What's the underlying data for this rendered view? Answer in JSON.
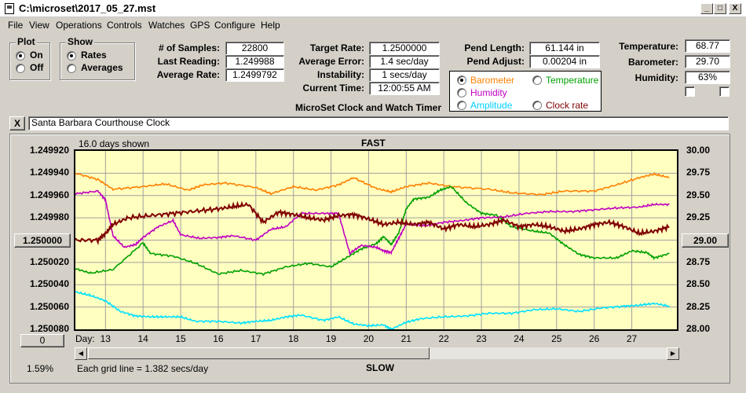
{
  "window": {
    "title": "C:\\microset\\2017_05_27.mst",
    "min_symbol": "_",
    "max_symbol": "□",
    "close_symbol": "X"
  },
  "menu": [
    "File",
    "View",
    "Operations",
    "Controls",
    "Watches",
    "GPS",
    "Configure",
    "Help"
  ],
  "plot_group": {
    "label": "Plot",
    "options": [
      "On",
      "Off"
    ],
    "selected": 0
  },
  "show_group": {
    "label": "Show",
    "options": [
      "Rates",
      "Averages"
    ],
    "selected": 0
  },
  "stats": {
    "samples_label": "# of Samples:",
    "samples": "22800",
    "last_reading_label": "Last Reading:",
    "last_reading": "1.249988",
    "average_rate_label": "Average Rate:",
    "average_rate": "1.2499792",
    "target_rate_label": "Target Rate:",
    "target_rate": "1.2500000",
    "average_error_label": "Average Error:",
    "average_error": "1.4 sec/day",
    "instability_label": "Instability:",
    "instability": "1 secs/day",
    "current_time_label": "Current Time:",
    "current_time": "12:00:55 AM",
    "app_caption": "MicroSet Clock and Watch Timer",
    "pend_length_label": "Pend Length:",
    "pend_length": "61.144 in",
    "pend_adjust_label": "Pend Adjust:",
    "pend_adjust": "0.00204 in",
    "temperature_label": "Temperature:",
    "temperature": "68.77",
    "barometer_label": "Barometer:",
    "barometer": "29.70",
    "humidity_label": "Humidity:",
    "humidity": "63%"
  },
  "sensors": [
    {
      "label": "Barometer",
      "color": "#ff8000",
      "selected": true
    },
    {
      "label": "Temperature",
      "color": "#00a000",
      "selected": false
    },
    {
      "label": "Humidity",
      "color": "#c000c0",
      "selected": false
    },
    {
      "label": "Amplitude",
      "color": "#00d0ff",
      "selected": false
    },
    {
      "label": "Clock rate",
      "color": "#800000",
      "selected": false
    }
  ],
  "clock_name": {
    "close_label": "X",
    "value": "Santa Barbara Courthouse Clock"
  },
  "chart": {
    "days_shown": "16.0 days shown",
    "top_label": "FAST",
    "bottom_label": "SLOW",
    "grid_note": "Each grid line = 1.382 secs/day",
    "day_label": "Day:",
    "percent": "1.59%",
    "center_left_button": "1.250000",
    "center_right_button": "29.00",
    "zero_button": "0"
  },
  "chart_data": {
    "type": "line",
    "x_label": "Day:",
    "x_ticks": [
      "13",
      "14",
      "15",
      "16",
      "17",
      "18",
      "19",
      "20",
      "21",
      "22",
      "23",
      "24",
      "25",
      "26",
      "27"
    ],
    "x_range": [
      12.2,
      28.2
    ],
    "left_axis": {
      "ticks": [
        "1.249920",
        "1.249940",
        "1.249960",
        "1.249980",
        "1.250000",
        "1.250020",
        "1.250040",
        "1.250060",
        "1.250080"
      ],
      "range_top": 1.24992,
      "range_bottom": 1.25008
    },
    "right_axis": {
      "ticks": [
        "30.00",
        "29.75",
        "29.50",
        "29.25",
        "29.00",
        "28.75",
        "28.50",
        "28.25",
        "28.00"
      ],
      "range_top": 30.0,
      "range_bottom": 28.0
    },
    "series": [
      {
        "color": "#ff8000",
        "axis": "right",
        "points": [
          [
            12.2,
            29.75
          ],
          [
            12.8,
            29.68
          ],
          [
            13.2,
            29.57
          ],
          [
            14.0,
            29.6
          ],
          [
            14.6,
            29.63
          ],
          [
            15.2,
            29.56
          ],
          [
            15.6,
            29.62
          ],
          [
            16.2,
            29.64
          ],
          [
            17.0,
            29.59
          ],
          [
            17.4,
            29.52
          ],
          [
            18.0,
            29.6
          ],
          [
            18.6,
            29.56
          ],
          [
            19.2,
            29.62
          ],
          [
            19.6,
            29.7
          ],
          [
            20.2,
            29.58
          ],
          [
            20.6,
            29.54
          ],
          [
            21.0,
            29.6
          ],
          [
            21.6,
            29.64
          ],
          [
            22.2,
            29.6
          ],
          [
            23.2,
            29.57
          ],
          [
            23.8,
            29.53
          ],
          [
            24.6,
            29.51
          ],
          [
            25.2,
            29.55
          ],
          [
            26.0,
            29.55
          ],
          [
            26.6,
            29.62
          ],
          [
            27.2,
            29.7
          ],
          [
            27.6,
            29.74
          ],
          [
            28.0,
            29.7
          ]
        ]
      },
      {
        "color": "#00a000",
        "axis": "right",
        "points": [
          [
            12.2,
            28.68
          ],
          [
            12.6,
            28.63
          ],
          [
            13.2,
            28.67
          ],
          [
            14.0,
            28.97
          ],
          [
            14.2,
            28.85
          ],
          [
            14.8,
            28.82
          ],
          [
            15.4,
            28.74
          ],
          [
            16.0,
            28.62
          ],
          [
            16.6,
            28.66
          ],
          [
            17.2,
            28.62
          ],
          [
            17.8,
            28.7
          ],
          [
            18.4,
            28.74
          ],
          [
            19.0,
            28.7
          ],
          [
            19.4,
            28.8
          ],
          [
            19.8,
            28.9
          ],
          [
            20.2,
            28.96
          ],
          [
            20.4,
            29.04
          ],
          [
            20.6,
            28.95
          ],
          [
            20.8,
            29.08
          ],
          [
            21.0,
            29.35
          ],
          [
            21.2,
            29.46
          ],
          [
            21.6,
            29.48
          ],
          [
            21.9,
            29.56
          ],
          [
            22.2,
            29.6
          ],
          [
            22.6,
            29.42
          ],
          [
            23.0,
            29.3
          ],
          [
            23.4,
            29.28
          ],
          [
            23.8,
            29.15
          ],
          [
            24.4,
            29.1
          ],
          [
            24.8,
            29.08
          ],
          [
            25.2,
            28.95
          ],
          [
            25.6,
            28.84
          ],
          [
            26.0,
            28.8
          ],
          [
            26.6,
            28.8
          ],
          [
            27.0,
            28.88
          ],
          [
            27.4,
            28.86
          ],
          [
            27.6,
            28.8
          ],
          [
            28.0,
            28.85
          ]
        ]
      },
      {
        "color": "#c000c0",
        "axis": "right",
        "points": [
          [
            12.2,
            29.52
          ],
          [
            12.8,
            29.55
          ],
          [
            13.0,
            29.45
          ],
          [
            13.2,
            29.05
          ],
          [
            13.5,
            28.92
          ],
          [
            13.8,
            28.95
          ],
          [
            14.0,
            29.03
          ],
          [
            14.4,
            29.15
          ],
          [
            14.8,
            29.22
          ],
          [
            15.0,
            29.06
          ],
          [
            15.5,
            29.02
          ],
          [
            16.0,
            29.03
          ],
          [
            16.4,
            29.05
          ],
          [
            17.0,
            29.0
          ],
          [
            17.4,
            29.12
          ],
          [
            17.8,
            29.15
          ],
          [
            18.2,
            29.3
          ],
          [
            18.8,
            29.3
          ],
          [
            19.2,
            29.3
          ],
          [
            19.5,
            28.85
          ],
          [
            19.8,
            28.94
          ],
          [
            20.2,
            28.92
          ],
          [
            20.4,
            28.88
          ],
          [
            20.6,
            28.86
          ],
          [
            20.8,
            29.02
          ],
          [
            21.0,
            29.18
          ],
          [
            21.5,
            29.16
          ],
          [
            22.0,
            29.2
          ],
          [
            22.5,
            29.22
          ],
          [
            23.0,
            29.25
          ],
          [
            23.6,
            29.26
          ],
          [
            24.2,
            29.3
          ],
          [
            24.8,
            29.32
          ],
          [
            25.4,
            29.32
          ],
          [
            26.0,
            29.34
          ],
          [
            26.6,
            29.36
          ],
          [
            27.2,
            29.37
          ],
          [
            27.6,
            29.4
          ],
          [
            28.0,
            29.4
          ]
        ]
      },
      {
        "color": "#00e0ff",
        "axis": "right",
        "points": [
          [
            12.2,
            28.42
          ],
          [
            12.6,
            28.38
          ],
          [
            13.0,
            28.32
          ],
          [
            13.4,
            28.2
          ],
          [
            13.8,
            28.15
          ],
          [
            14.2,
            28.14
          ],
          [
            14.6,
            28.14
          ],
          [
            15.0,
            28.14
          ],
          [
            15.4,
            28.09
          ],
          [
            16.0,
            28.09
          ],
          [
            16.6,
            28.07
          ],
          [
            17.0,
            28.09
          ],
          [
            17.4,
            28.1
          ],
          [
            17.8,
            28.14
          ],
          [
            18.2,
            28.16
          ],
          [
            18.8,
            28.1
          ],
          [
            19.2,
            28.14
          ],
          [
            19.6,
            28.06
          ],
          [
            20.0,
            28.04
          ],
          [
            20.4,
            28.05
          ],
          [
            20.6,
            28.0
          ],
          [
            21.0,
            28.08
          ],
          [
            21.4,
            28.12
          ],
          [
            22.0,
            28.14
          ],
          [
            22.6,
            28.15
          ],
          [
            23.2,
            28.18
          ],
          [
            23.8,
            28.18
          ],
          [
            24.4,
            28.22
          ],
          [
            25.0,
            28.23
          ],
          [
            25.6,
            28.2
          ],
          [
            26.2,
            28.24
          ],
          [
            26.8,
            28.26
          ],
          [
            27.2,
            28.27
          ],
          [
            27.6,
            28.29
          ],
          [
            28.0,
            28.26
          ]
        ]
      },
      {
        "color": "#800000",
        "axis": "left",
        "points": [
          [
            12.2,
            1.25
          ],
          [
            12.8,
            1.25
          ],
          [
            13.0,
            1.249994
          ],
          [
            13.2,
            1.249986
          ],
          [
            13.6,
            1.24998
          ],
          [
            14.2,
            1.249978
          ],
          [
            14.8,
            1.249976
          ],
          [
            15.4,
            1.249974
          ],
          [
            16.0,
            1.249972
          ],
          [
            16.4,
            1.24997
          ],
          [
            16.8,
            1.249968
          ],
          [
            17.2,
            1.249984
          ],
          [
            17.6,
            1.249975
          ],
          [
            18.0,
            1.249977
          ],
          [
            18.4,
            1.24998
          ],
          [
            18.8,
            1.249982
          ],
          [
            19.2,
            1.249978
          ],
          [
            19.6,
            1.249977
          ],
          [
            20.0,
            1.249981
          ],
          [
            20.4,
            1.249986
          ],
          [
            20.8,
            1.249984
          ],
          [
            21.2,
            1.249986
          ],
          [
            21.6,
            1.249984
          ],
          [
            22.0,
            1.24999
          ],
          [
            22.4,
            1.249986
          ],
          [
            22.8,
            1.249988
          ],
          [
            23.2,
            1.249986
          ],
          [
            23.6,
            1.249982
          ],
          [
            24.0,
            1.249988
          ],
          [
            24.4,
            1.249986
          ],
          [
            24.8,
            1.249988
          ],
          [
            25.2,
            1.249992
          ],
          [
            25.6,
            1.24999
          ],
          [
            26.0,
            1.249986
          ],
          [
            26.4,
            1.249984
          ],
          [
            26.8,
            1.249988
          ],
          [
            27.2,
            1.249994
          ],
          [
            27.6,
            1.249992
          ],
          [
            28.0,
            1.249988
          ]
        ]
      }
    ]
  }
}
